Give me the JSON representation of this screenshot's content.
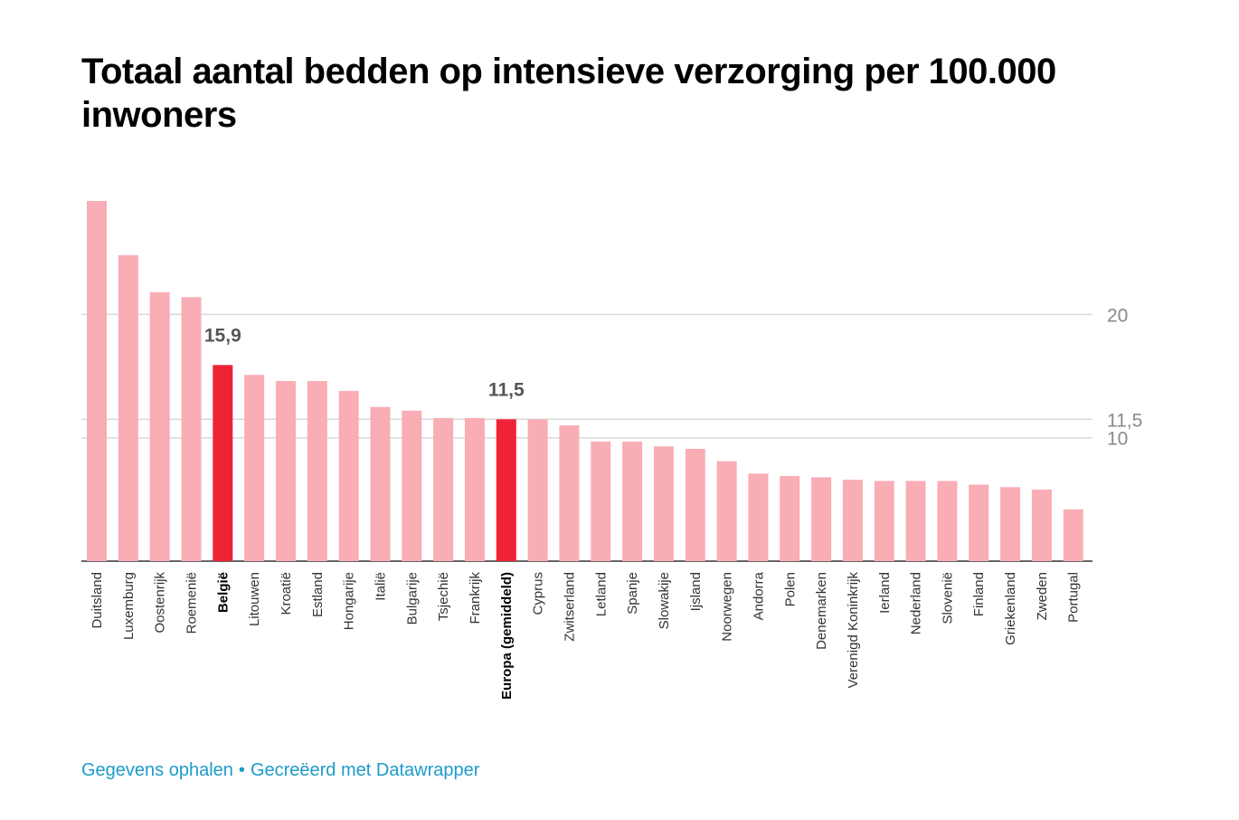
{
  "chart_data": {
    "type": "bar",
    "title": "Totaal aantal bedden op intensieve verzorging per 100.000 inwoners",
    "categories": [
      "Duitsland",
      "Luxemburg",
      "Oostenrijk",
      "Roemenië",
      "België",
      "Litouwen",
      "Kroatië",
      "Estland",
      "Hongarije",
      "Italië",
      "Bulgarije",
      "Tsjechië",
      "Frankrijk",
      "Europa (gemiddeld)",
      "Cyprus",
      "Zwitserland",
      "Letland",
      "Spanje",
      "Slowakije",
      "Ijsland",
      "Noorwegen",
      "Andorra",
      "Polen",
      "Denemarken",
      "Verenigd Koninkrijk",
      "Ierland",
      "Nederland",
      "Slovenië",
      "Finland",
      "Griekenland",
      "Zweden",
      "Portugal"
    ],
    "values": [
      29.2,
      24.8,
      21.8,
      21.4,
      15.9,
      15.1,
      14.6,
      14.6,
      13.8,
      12.5,
      12.2,
      11.6,
      11.6,
      11.5,
      11.5,
      11.0,
      9.7,
      9.7,
      9.3,
      9.1,
      8.1,
      7.1,
      6.9,
      6.8,
      6.6,
      6.5,
      6.5,
      6.5,
      6.2,
      6.0,
      5.8,
      4.2
    ],
    "highlighted": [
      "België",
      "Europa (gemiddeld)"
    ],
    "value_labels": [
      {
        "category": "België",
        "text": "15,9"
      },
      {
        "category": "Europa (gemiddeld)",
        "text": "11,5"
      }
    ],
    "yticks": [
      {
        "value": 20,
        "label": "20"
      },
      {
        "value": 11.5,
        "label": "11,5"
      },
      {
        "value": 10,
        "label": "10"
      }
    ],
    "ylim": [
      0,
      29.2
    ],
    "xlabel": "",
    "ylabel": "",
    "grid": true,
    "colors": {
      "bar": "#f9adb5",
      "highlight": "#ee2336",
      "grid": "#d9d9d9",
      "axis": "#333333"
    }
  },
  "footer": {
    "link_text": "Gegevens ophalen",
    "separator": "•",
    "credit": "Gecreëerd met Datawrapper"
  }
}
